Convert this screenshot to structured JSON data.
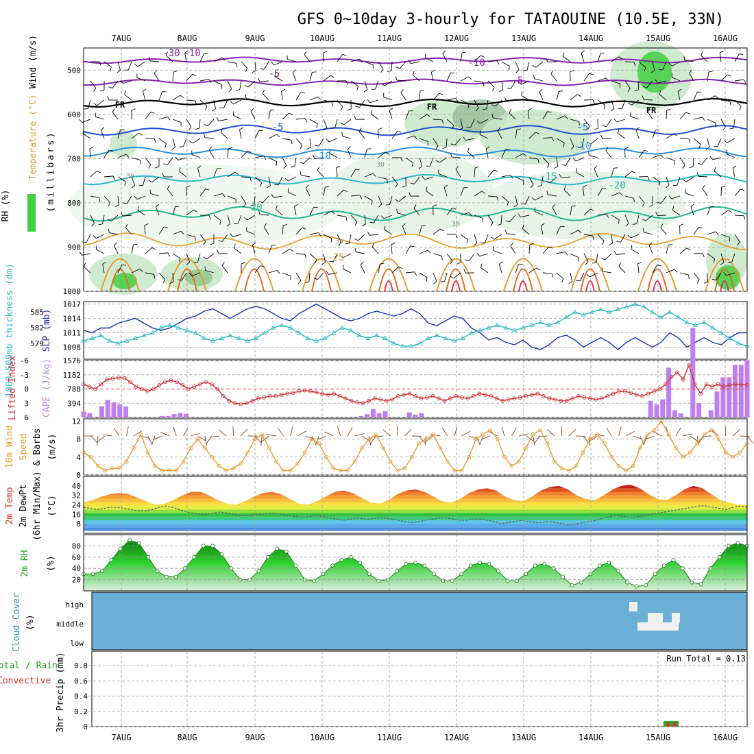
{
  "title": "GFS 0~10day 3-hourly for TATAOUINE (10.5E, 33N)",
  "dates": [
    "7AUG",
    "8AUG",
    "9AUG",
    "10AUG",
    "11AUG",
    "12AUG",
    "13AUG",
    "14AUG",
    "15AUG",
    "16AUG"
  ],
  "panels": {
    "upper": {
      "label_rh": "RH (%)",
      "label_temp": "Temperature (°C)",
      "label_wind": "Wind (m/s)",
      "label_units": "(millibars)",
      "ticks": [
        500,
        600,
        700,
        800,
        900,
        1000
      ],
      "freezing_label": "FR",
      "contour_labels": [
        "-10",
        "-5",
        "-10",
        "-5",
        "-5",
        "-5",
        "-10",
        "-10",
        "-15",
        "-20",
        "-20",
        "-25",
        "-30",
        "30",
        "30",
        "30",
        "30"
      ]
    },
    "slp": {
      "label_slp": "SLP (mb)",
      "label_thk": "1000~500mb thickness (dm)",
      "slp_ticks": [
        1008,
        1011,
        1014,
        1017
      ],
      "thk_ticks": [
        579,
        582,
        585
      ]
    },
    "cape": {
      "label_li": "Lifted Index",
      "label_cape": "CAPE (J/kg)",
      "li_ticks": [
        "-6",
        "-3",
        "0",
        "3",
        "6"
      ],
      "cape_ticks": [
        1576,
        1182,
        788,
        394
      ]
    },
    "wind10": {
      "label_1": "10m Wind",
      "label_2": "Speed",
      "label_3": "& Barbs",
      "label_units": "(m/s)",
      "ticks": [
        0,
        4,
        8,
        12
      ]
    },
    "temp2m": {
      "label_1": "2m Temp",
      "label_2": "2m DewPt",
      "label_3": "(6hr Min/Max)",
      "label_units": "(°C)",
      "ticks": [
        8,
        16,
        24,
        32,
        40
      ]
    },
    "rh2m": {
      "label_1": "2m RH",
      "label_units": "(%)",
      "ticks": [
        20,
        40,
        60,
        80
      ]
    },
    "cloud": {
      "label_1": "Cloud Cover",
      "label_units": "(%)",
      "levels": [
        "high",
        "middle",
        "low"
      ]
    },
    "precip": {
      "label_total": "Total / Rain",
      "label_conv": "Convective",
      "label_units": "3hr Precip (mm)",
      "ticks": [
        "0",
        "0.2",
        "0.4",
        "0.6",
        "0.8"
      ],
      "run_total": "Run Total = 0.13"
    }
  },
  "chart_data": [
    {
      "type": "line",
      "name": "slp_thickness",
      "series": [
        {
          "name": "SLP (mb)",
          "color": "#1a2fb8",
          "values": [
            1011.5,
            1011,
            1012,
            1012,
            1013,
            1013.5,
            1014,
            1013,
            1012,
            1011.5,
            1012,
            1013,
            1014,
            1014.5,
            1015.5,
            1016,
            1015,
            1014,
            1015,
            1016,
            1016.5,
            1016,
            1015,
            1014,
            1013.5,
            1015,
            1016,
            1017,
            1016,
            1015,
            1014,
            1013.5,
            1014,
            1015,
            1015.5,
            1015,
            1014.5,
            1015,
            1016,
            1015,
            1013,
            1012.5,
            1013.5,
            1014.5,
            1014,
            1012,
            1011,
            1009.5,
            1010,
            1009,
            1008.5,
            1009.5,
            1008,
            1007.5,
            1008.5,
            1010,
            1010.5,
            1009.5,
            1008,
            1009,
            1010,
            1009,
            1007.5,
            1009,
            1010,
            1009,
            1008,
            1009,
            1011,
            1010,
            1008,
            1009,
            1010,
            1009,
            1008.5,
            1010,
            1011,
            1011
          ]
        },
        {
          "name": "1000~500mb thickness (dm)",
          "color": "#2ab8c8",
          "values": [
            579.5,
            580,
            580.5,
            579.5,
            579,
            579.5,
            580,
            580.5,
            581,
            582,
            582.5,
            582,
            581.5,
            581,
            580,
            579.5,
            580,
            580.5,
            580,
            579.5,
            580,
            581,
            582,
            582.5,
            582,
            581,
            580,
            579.5,
            580,
            581,
            582,
            581.5,
            580.5,
            580,
            580.5,
            580,
            579,
            578.5,
            578.5,
            579,
            580,
            580.5,
            580,
            579.5,
            580,
            581,
            581.5,
            582,
            582.5,
            582,
            581.5,
            582,
            582.5,
            583,
            582.5,
            583,
            584,
            585,
            584.5,
            585,
            585.5,
            585,
            585.5,
            586,
            586.5,
            586,
            585,
            584,
            585,
            584,
            583,
            582.5,
            583,
            582,
            581,
            580,
            579,
            578.5
          ]
        }
      ],
      "slp_ylim": [
        1005.5,
        1017.5
      ],
      "thk_ylim": [
        576,
        587
      ]
    },
    {
      "type": "bar",
      "name": "cape_lifted_index",
      "series": [
        {
          "name": "CAPE (J/kg)",
          "color": "#c07ff0",
          "values": [
            160,
            120,
            0,
            310,
            480,
            420,
            360,
            300,
            0,
            0,
            0,
            0,
            0,
            40,
            40,
            90,
            120,
            100,
            0,
            0,
            0,
            0,
            0,
            0,
            0,
            0,
            0,
            0,
            0,
            0,
            0,
            0,
            0,
            0,
            0,
            0,
            0,
            0,
            0,
            0,
            0,
            0,
            0,
            0,
            0,
            0,
            40,
            90,
            230,
            120,
            170,
            0,
            0,
            0,
            140,
            80,
            120,
            0,
            0,
            0,
            0,
            0,
            0,
            0,
            0,
            0,
            0,
            0,
            0,
            0,
            0,
            0,
            0,
            0,
            0,
            0,
            0,
            0,
            0,
            0,
            0,
            0,
            0,
            0,
            0,
            0,
            0,
            0,
            0,
            0,
            0,
            0,
            0,
            0,
            460,
            360,
            500,
            1380,
            200,
            110,
            0,
            2480,
            400,
            0,
            200,
            720,
            1110,
            1110,
            1460,
            1460,
            1590
          ]
        },
        {
          "name": "Lifted Index",
          "color": "#d03030",
          "values": [
            -1,
            -0.5,
            0,
            -1,
            -2,
            -2.2,
            -2.4,
            -2.3,
            -1.5,
            -0.5,
            0,
            0.5,
            0,
            -0.8,
            -1.5,
            -1.8,
            -1.5,
            -0.8,
            0,
            -0.5,
            -1,
            -1.5,
            -1,
            0,
            1.5,
            2.5,
            3,
            3.2,
            3,
            2.5,
            2,
            1.8,
            1.5,
            1.5,
            1.2,
            1,
            0.8,
            0.5,
            0.3,
            0.5,
            0.7,
            1,
            1.2,
            1,
            1.5,
            2,
            2.5,
            2.8,
            3,
            2.5,
            2,
            2.2,
            2.5,
            2.2,
            1.5,
            1.2,
            1,
            1.5,
            2,
            1.8,
            1.5,
            2,
            2.5,
            2,
            1.5,
            1.8,
            2,
            1.5,
            1,
            1.2,
            1.5,
            2,
            2.5,
            2.2,
            2,
            1.8,
            1.5,
            1.2,
            1,
            1.5,
            2,
            2.2,
            2.5,
            2.5,
            2,
            1.5,
            1.8,
            2,
            2.2,
            2,
            1.5,
            1,
            0.5,
            0.5,
            0.8,
            1.2,
            1.5,
            1,
            0.5,
            0,
            -1,
            -2.5,
            -3.5,
            -2,
            -5,
            -1,
            1,
            -1,
            -0.5,
            -1,
            -0.5,
            -0.8,
            -1,
            -1,
            -0.8
          ]
        }
      ],
      "cape_ylim": [
        0,
        1576
      ],
      "li_ylim": [
        6,
        -6
      ]
    },
    {
      "type": "line",
      "name": "wind10m",
      "series": [
        {
          "name": "Speed",
          "color": "#e89a30",
          "values": [
            5,
            4,
            2,
            1,
            1.5,
            1.5,
            3,
            6,
            9,
            5,
            2,
            1,
            1,
            1,
            3,
            6,
            8,
            6,
            4,
            2,
            1,
            1.5,
            2.5,
            5,
            8,
            9,
            6,
            3,
            1,
            1,
            2.5,
            5,
            8,
            7,
            4,
            1.5,
            1,
            1,
            3,
            6,
            8,
            9,
            6,
            3,
            1,
            1.5,
            4,
            7,
            8,
            9,
            6,
            3,
            1,
            1,
            4,
            8,
            9,
            10,
            8,
            4,
            2,
            3,
            6,
            9,
            10,
            7,
            3,
            1.5,
            1,
            2,
            5,
            8,
            9,
            7,
            4,
            2,
            1,
            2,
            6,
            9,
            10,
            12,
            9,
            6,
            4,
            5,
            7,
            9,
            10,
            8,
            5,
            4,
            5,
            7
          ]
        }
      ],
      "ylim": [
        0,
        12.5
      ]
    },
    {
      "type": "area",
      "name": "temp2m",
      "series": [
        {
          "name": "2m Temp",
          "values": [
            26,
            28,
            31,
            33,
            34,
            33,
            30,
            27,
            24,
            25,
            28,
            32,
            35,
            35,
            32,
            28,
            25,
            24,
            27,
            31,
            34,
            35,
            33,
            29,
            25,
            24,
            27,
            31,
            35,
            36,
            34,
            30,
            26,
            25,
            28,
            33,
            36,
            37,
            35,
            31,
            27,
            26,
            29,
            34,
            37,
            38,
            36,
            31,
            28,
            27,
            31,
            36,
            39,
            40,
            37,
            32,
            29,
            28,
            32,
            37,
            40,
            41,
            38,
            33,
            29,
            28,
            32,
            37,
            40,
            38,
            33,
            28,
            26,
            24,
            24
          ]
        },
        {
          "name": "2m DewPt",
          "values": [
            22,
            21,
            20,
            21,
            22,
            22,
            21,
            20,
            19,
            19,
            20,
            22,
            23,
            22,
            20,
            18,
            17,
            16,
            16,
            17,
            18,
            17,
            16,
            15,
            15,
            16,
            16,
            17,
            17,
            16,
            15,
            14,
            13,
            14,
            15,
            14,
            13,
            12,
            11,
            12,
            13,
            12,
            12,
            13,
            13,
            12,
            11,
            10,
            9,
            10,
            11,
            12,
            13,
            13,
            12,
            11,
            11,
            12,
            12,
            11,
            10,
            8,
            9,
            10,
            11,
            10,
            9,
            9,
            10,
            9,
            8,
            7,
            8,
            9,
            10,
            11,
            13,
            14,
            15,
            14,
            13,
            14,
            15,
            16,
            17,
            18,
            19,
            20,
            21,
            22,
            23,
            23,
            22,
            21,
            20,
            22,
            23,
            22
          ]
        }
      ],
      "ylim": [
        0,
        48
      ]
    },
    {
      "type": "area",
      "name": "rh2m",
      "series": [
        {
          "name": "2m RH",
          "values": [
            30,
            30,
            35,
            55,
            75,
            90,
            85,
            60,
            35,
            25,
            25,
            40,
            60,
            80,
            80,
            65,
            40,
            20,
            20,
            35,
            60,
            75,
            70,
            45,
            20,
            18,
            30,
            45,
            55,
            60,
            50,
            30,
            18,
            20,
            35,
            48,
            50,
            45,
            30,
            18,
            18,
            30,
            45,
            50,
            48,
            35,
            18,
            18,
            30,
            45,
            48,
            40,
            25,
            10,
            15,
            30,
            45,
            50,
            35,
            15,
            8,
            10,
            30,
            45,
            55,
            40,
            15,
            12,
            40,
            60,
            80,
            85,
            80
          ]
        }
      ],
      "ylim": [
        0,
        100
      ]
    },
    {
      "type": "heatmap",
      "name": "cloud_cover",
      "levels": [
        "high",
        "middle",
        "low"
      ],
      "background": "#6baed6",
      "blocks_visible": true
    },
    {
      "type": "bar",
      "name": "precip",
      "series": [
        {
          "name": "Total / Rain",
          "color": "#20b020"
        },
        {
          "name": "Convective",
          "color": "#e03030"
        }
      ],
      "ylim": [
        0,
        1
      ],
      "run_total": 0.13
    }
  ],
  "colors": {
    "slp": "#1a2fb8",
    "thickness": "#2ab8c8",
    "cape": "#c07ff0",
    "li": "#d03030",
    "wind": "#e89a30",
    "cloud_bg": "#6baed6",
    "rh_label": "#20a020",
    "purple_label": "#b060c0",
    "red_label": "#d03030",
    "orange_label": "#e89a30",
    "cyan_label": "#2ab8c8"
  }
}
